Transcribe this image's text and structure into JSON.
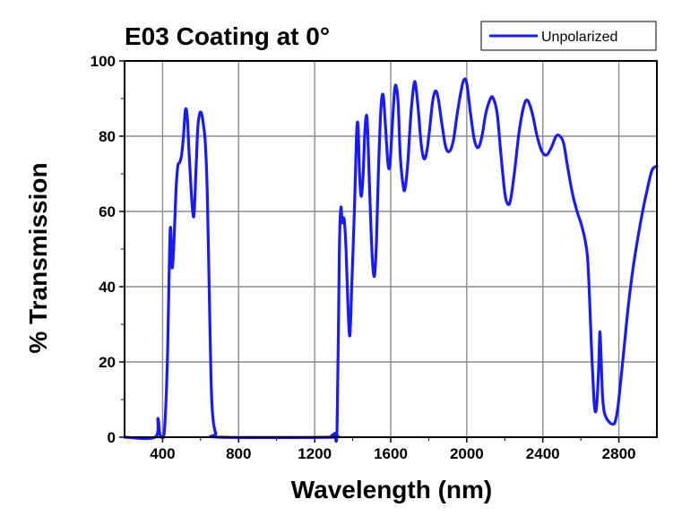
{
  "chart_data": {
    "type": "line",
    "title": "E03 Coating at 0°",
    "xlabel": "Wavelength (nm)",
    "ylabel": "% Transmission",
    "xlim": [
      200,
      3000
    ],
    "ylim": [
      0,
      100
    ],
    "x_ticks": [
      400,
      800,
      1200,
      1600,
      2000,
      2400,
      2800
    ],
    "x_tick_labels": [
      "400",
      "800",
      "1200",
      "1600",
      "2000",
      "2400",
      "2800"
    ],
    "y_ticks": [
      0,
      20,
      40,
      60,
      80,
      100
    ],
    "y_tick_labels": [
      "0",
      "20",
      "40",
      "60",
      "80",
      "100"
    ],
    "grid": true,
    "legend_position": "top-right",
    "series": [
      {
        "name": "Unpolarized",
        "color": "#1a1aff",
        "points": [
          [
            200,
            0
          ],
          [
            360,
            0
          ],
          [
            375,
            5
          ],
          [
            385,
            1
          ],
          [
            395,
            0
          ],
          [
            410,
            2
          ],
          [
            425,
            20
          ],
          [
            440,
            55
          ],
          [
            450,
            45
          ],
          [
            460,
            52
          ],
          [
            470,
            65
          ],
          [
            480,
            72
          ],
          [
            490,
            73
          ],
          [
            500,
            75
          ],
          [
            510,
            80
          ],
          [
            520,
            87
          ],
          [
            530,
            85
          ],
          [
            540,
            75
          ],
          [
            555,
            62
          ],
          [
            565,
            59
          ],
          [
            575,
            70
          ],
          [
            585,
            82
          ],
          [
            595,
            86
          ],
          [
            605,
            86
          ],
          [
            615,
            83
          ],
          [
            625,
            78
          ],
          [
            635,
            65
          ],
          [
            645,
            40
          ],
          [
            655,
            15
          ],
          [
            665,
            5
          ],
          [
            680,
            1
          ],
          [
            700,
            0
          ],
          [
            1280,
            0
          ],
          [
            1290,
            0.5
          ],
          [
            1305,
            1
          ],
          [
            1318,
            3
          ],
          [
            1330,
            50
          ],
          [
            1338,
            61
          ],
          [
            1345,
            57
          ],
          [
            1355,
            58
          ],
          [
            1365,
            50
          ],
          [
            1375,
            35
          ],
          [
            1385,
            27
          ],
          [
            1395,
            40
          ],
          [
            1410,
            62
          ],
          [
            1420,
            80
          ],
          [
            1428,
            83
          ],
          [
            1436,
            70
          ],
          [
            1445,
            64
          ],
          [
            1455,
            70
          ],
          [
            1465,
            82
          ],
          [
            1475,
            85
          ],
          [
            1485,
            72
          ],
          [
            1495,
            57
          ],
          [
            1505,
            46
          ],
          [
            1515,
            43
          ],
          [
            1525,
            52
          ],
          [
            1535,
            70
          ],
          [
            1548,
            87
          ],
          [
            1560,
            91
          ],
          [
            1572,
            83
          ],
          [
            1585,
            73
          ],
          [
            1595,
            72
          ],
          [
            1605,
            80
          ],
          [
            1620,
            92
          ],
          [
            1630,
            93
          ],
          [
            1640,
            88
          ],
          [
            1650,
            75
          ],
          [
            1665,
            67
          ],
          [
            1675,
            66
          ],
          [
            1690,
            73
          ],
          [
            1705,
            85
          ],
          [
            1720,
            93
          ],
          [
            1730,
            94
          ],
          [
            1745,
            87
          ],
          [
            1760,
            78
          ],
          [
            1775,
            74
          ],
          [
            1790,
            76
          ],
          [
            1805,
            82
          ],
          [
            1820,
            89
          ],
          [
            1835,
            92
          ],
          [
            1850,
            90
          ],
          [
            1870,
            83
          ],
          [
            1890,
            77
          ],
          [
            1910,
            76
          ],
          [
            1930,
            79
          ],
          [
            1950,
            86
          ],
          [
            1970,
            92
          ],
          [
            1985,
            95
          ],
          [
            2000,
            94
          ],
          [
            2020,
            86
          ],
          [
            2040,
            79
          ],
          [
            2060,
            77
          ],
          [
            2080,
            80
          ],
          [
            2100,
            86
          ],
          [
            2125,
            90
          ],
          [
            2140,
            90
          ],
          [
            2160,
            86
          ],
          [
            2180,
            75
          ],
          [
            2200,
            65
          ],
          [
            2215,
            62
          ],
          [
            2230,
            63
          ],
          [
            2250,
            70
          ],
          [
            2275,
            81
          ],
          [
            2300,
            88
          ],
          [
            2320,
            89.5
          ],
          [
            2345,
            86
          ],
          [
            2370,
            80
          ],
          [
            2395,
            76
          ],
          [
            2420,
            75
          ],
          [
            2445,
            77
          ],
          [
            2470,
            80
          ],
          [
            2490,
            80
          ],
          [
            2510,
            78
          ],
          [
            2530,
            72
          ],
          [
            2555,
            65
          ],
          [
            2580,
            60
          ],
          [
            2600,
            57
          ],
          [
            2620,
            53
          ],
          [
            2635,
            48
          ],
          [
            2645,
            38
          ],
          [
            2655,
            25
          ],
          [
            2665,
            14
          ],
          [
            2672,
            8
          ],
          [
            2680,
            7
          ],
          [
            2688,
            12
          ],
          [
            2695,
            20
          ],
          [
            2700,
            28
          ],
          [
            2706,
            22
          ],
          [
            2713,
            12
          ],
          [
            2722,
            7
          ],
          [
            2735,
            5
          ],
          [
            2750,
            4
          ],
          [
            2765,
            3.5
          ],
          [
            2780,
            4
          ],
          [
            2795,
            8
          ],
          [
            2810,
            15
          ],
          [
            2830,
            25
          ],
          [
            2850,
            35
          ],
          [
            2875,
            45
          ],
          [
            2900,
            53
          ],
          [
            2925,
            60
          ],
          [
            2950,
            66
          ],
          [
            2975,
            71
          ],
          [
            3000,
            72
          ]
        ]
      }
    ]
  }
}
